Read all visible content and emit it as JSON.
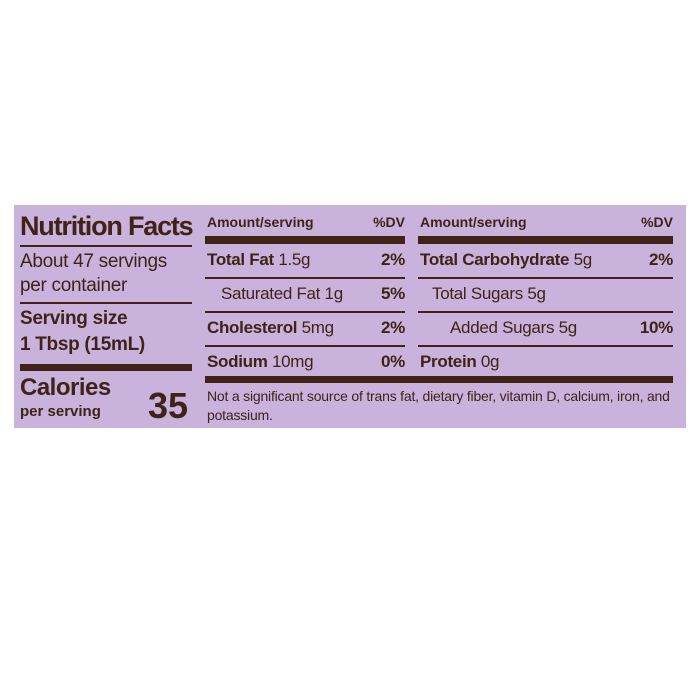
{
  "title": "Nutrition Facts",
  "servings": "About 47 servings per container",
  "serving_size": {
    "label": "Serving size",
    "value": "1 Tbsp (15mL)"
  },
  "calories": {
    "label": "Calories",
    "sub": "per serving",
    "value": "35"
  },
  "left_table": {
    "header": {
      "amount": "Amount/serving",
      "dv": "%DV"
    },
    "rows": [
      {
        "name": "Total Fat",
        "amount": "1.5g",
        "dv": "2%"
      },
      {
        "name": "Saturated Fat",
        "amount": "1g",
        "dv": "5%"
      },
      {
        "name": "Cholesterol",
        "amount": "5mg",
        "dv": "2%"
      },
      {
        "name": "Sodium",
        "amount": "10mg",
        "dv": "0%"
      }
    ]
  },
  "right_table": {
    "header": {
      "amount": "Amount/serving",
      "dv": "%DV"
    },
    "rows": [
      {
        "name": "Total Carbohydrate",
        "amount": "5g",
        "dv": "2%"
      },
      {
        "name": "Total Sugars",
        "amount": "5g"
      },
      {
        "name": "Added Sugars",
        "amount": "5g",
        "dv": "10%"
      },
      {
        "name": "Protein",
        "amount": "0g"
      }
    ]
  },
  "footnote": "Not a significant source of trans fat, dietary fiber, vitamin D, calcium, iron, and potassium."
}
